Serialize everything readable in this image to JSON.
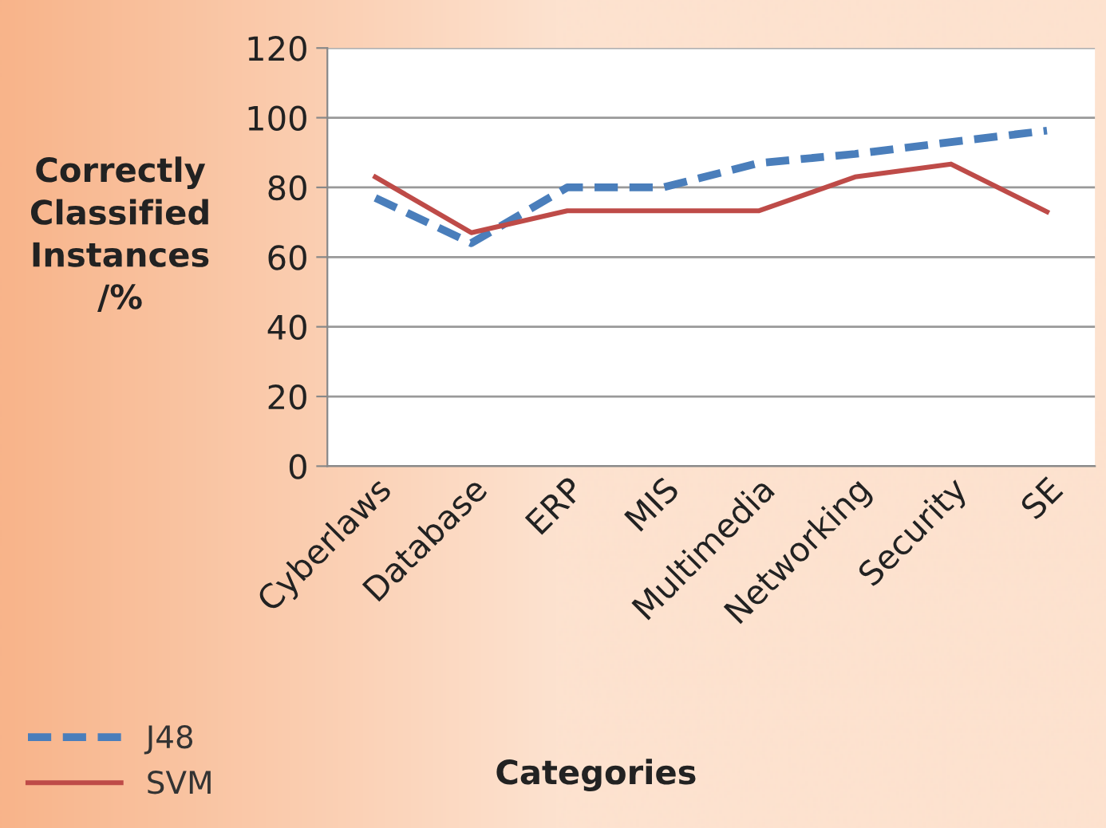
{
  "chart_data": {
    "type": "line",
    "xlabel": "Categories",
    "ylabel": "Correctly\nClassified\nInstances\n/%",
    "categories": [
      "Cyberlaws",
      "Database",
      "ERP",
      "MIS",
      "Multimedia",
      "Networking",
      "Security",
      "SE"
    ],
    "series": [
      {
        "name": "J48",
        "color": "#4a7ebb",
        "line_style": "dashed",
        "values": [
          77,
          64,
          80,
          80,
          87,
          89.6,
          93,
          96.3
        ]
      },
      {
        "name": "SVM",
        "color": "#be4b48",
        "line_style": "solid",
        "values": [
          83,
          67,
          73.3,
          73.3,
          73.3,
          83,
          86.7,
          73
        ]
      }
    ],
    "ylim": [
      0,
      120
    ],
    "yticks": [
      0,
      20,
      40,
      60,
      80,
      100,
      120
    ],
    "grid": "y",
    "legend": "bottom left",
    "marker": "none"
  }
}
